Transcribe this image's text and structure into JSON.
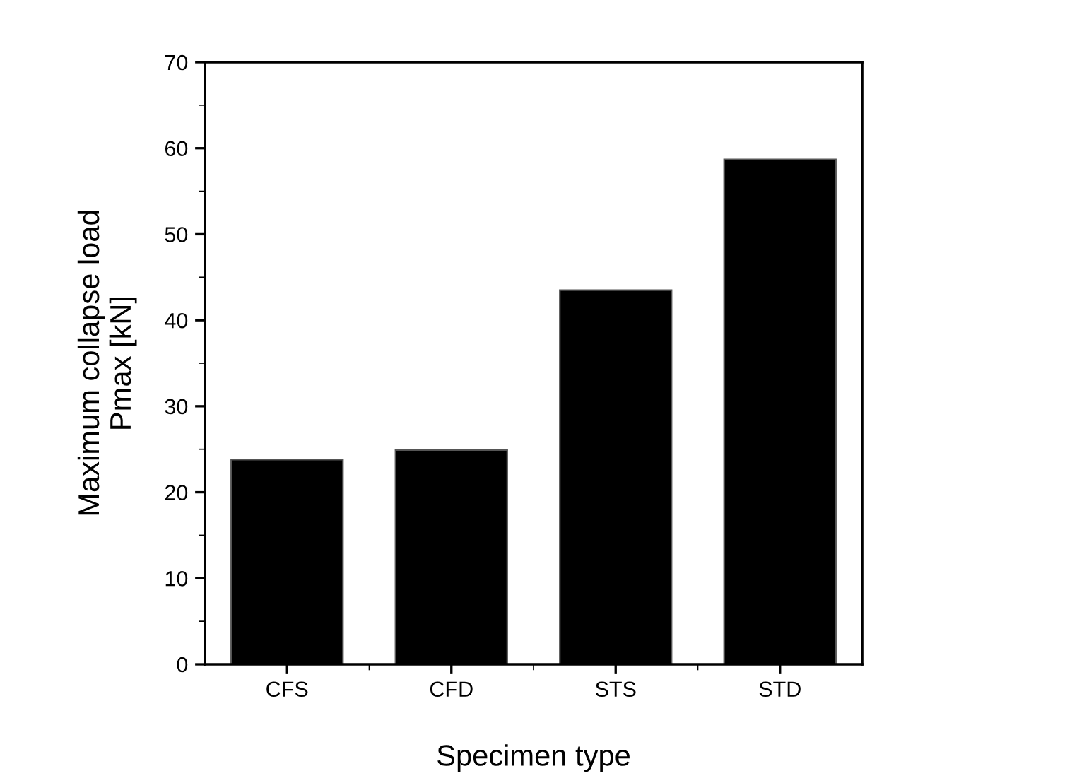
{
  "chart_data": {
    "type": "bar",
    "xlabel": "Specimen type",
    "ylabel": "Maximum collapse load\nPmax [kN]",
    "categories": [
      "CFS",
      "CFD",
      "STS",
      "STD"
    ],
    "values": [
      23.8,
      24.9,
      43.5,
      58.7
    ],
    "color": "#000000",
    "ylim": [
      0,
      70
    ],
    "yticks": [
      0,
      10,
      20,
      30,
      40,
      50,
      60,
      70
    ],
    "grid": false,
    "legend": false
  }
}
